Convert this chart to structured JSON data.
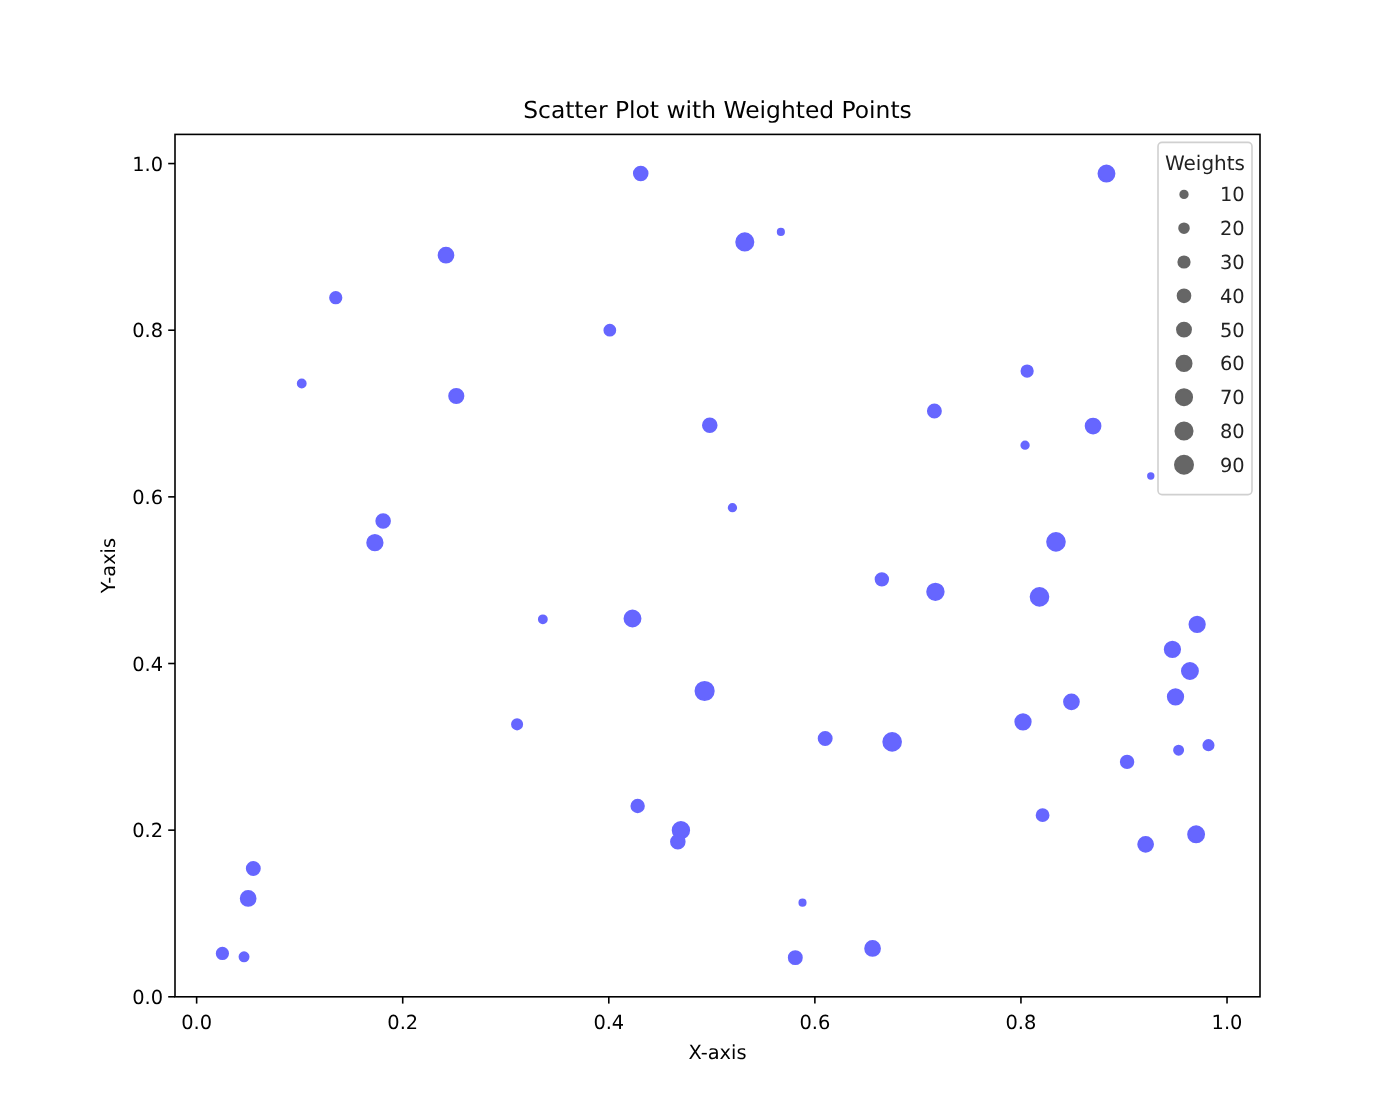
{
  "chart_data": {
    "type": "bubble",
    "title": "Scatter Plot with Weighted Points",
    "xlabel": "X-axis",
    "ylabel": "Y-axis",
    "legend_title": "Weights",
    "color": "#6666ff",
    "x": [
      0.431,
      0.242,
      0.135,
      0.401,
      0.102,
      0.252,
      0.181,
      0.173,
      0.883,
      0.532,
      0.567,
      0.806,
      0.498,
      0.716,
      0.87,
      0.804,
      0.52,
      0.926,
      0.834,
      0.336,
      0.423,
      0.311,
      0.428,
      0.055,
      0.05,
      0.025,
      0.046,
      0.47,
      0.467,
      0.493,
      0.665,
      0.717,
      0.818,
      0.971,
      0.947,
      0.964,
      0.95,
      0.849,
      0.802,
      0.61,
      0.675,
      0.903,
      0.953,
      0.982,
      0.821,
      0.921,
      0.97,
      0.588,
      0.581,
      0.656
    ],
    "values": [
      0.988,
      0.89,
      0.839,
      0.8,
      0.736,
      0.721,
      0.571,
      0.545,
      0.988,
      0.906,
      0.918,
      0.751,
      0.686,
      0.703,
      0.685,
      0.662,
      0.587,
      0.625,
      0.546,
      0.453,
      0.454,
      0.327,
      0.229,
      0.154,
      0.118,
      0.052,
      0.048,
      0.2,
      0.186,
      0.367,
      0.501,
      0.486,
      0.48,
      0.447,
      0.417,
      0.391,
      0.36,
      0.354,
      0.33,
      0.31,
      0.306,
      0.282,
      0.296,
      0.302,
      0.218,
      0.183,
      0.195,
      0.113,
      0.047,
      0.058
    ],
    "sizes": [
      47,
      57,
      30,
      27,
      12,
      52,
      47,
      62,
      68,
      80,
      6,
      30,
      47,
      42,
      57,
      10,
      10,
      4,
      86,
      12,
      68,
      23,
      38,
      42,
      57,
      30,
      17,
      73,
      47,
      92,
      38,
      73,
      86,
      62,
      62,
      68,
      62,
      57,
      62,
      42,
      86,
      38,
      17,
      23,
      34,
      57,
      68,
      6,
      42,
      57
    ],
    "size_legend": [
      10,
      20,
      30,
      40,
      50,
      60,
      70,
      80,
      90
    ],
    "xlim": [
      -0.021,
      1.032
    ],
    "ylim": [
      0,
      1.035
    ],
    "xticks": [
      {
        "value": 0,
        "label": "0.0"
      },
      {
        "value": 0.2,
        "label": "0.2"
      },
      {
        "value": 0.4,
        "label": "0.4"
      },
      {
        "value": 0.6,
        "label": "0.6"
      },
      {
        "value": 0.8,
        "label": "0.8"
      },
      {
        "value": 1,
        "label": "1.0"
      }
    ],
    "yticks": [
      {
        "value": 0,
        "label": "0.0"
      },
      {
        "value": 0.2,
        "label": "0.2"
      },
      {
        "value": 0.4,
        "label": "0.4"
      },
      {
        "value": 0.6,
        "label": "0.6"
      },
      {
        "value": 0.8,
        "label": "0.8"
      },
      {
        "value": 1,
        "label": "1.0"
      }
    ]
  }
}
